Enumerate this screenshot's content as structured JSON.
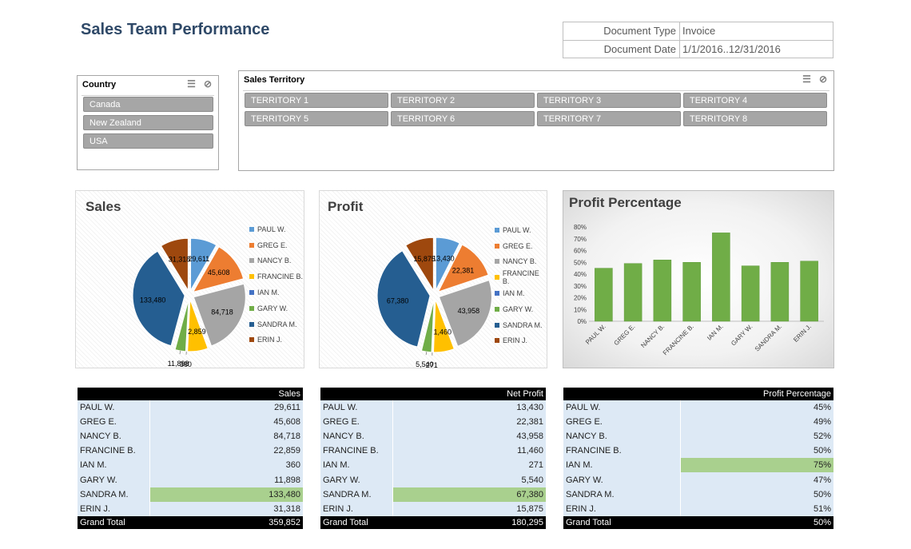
{
  "title": "Sales Team Performance",
  "doc_info": [
    {
      "label": "Document Type",
      "value": "Invoice"
    },
    {
      "label": "Document Date",
      "value": "1/1/2016..12/31/2016"
    }
  ],
  "country_slicer": {
    "title": "Country",
    "items": [
      "Canada",
      "New Zealand",
      "USA"
    ],
    "icons": [
      "multi-select-icon",
      "clear-filter-icon"
    ]
  },
  "territory_slicer": {
    "title": "Sales Territory",
    "items": [
      "TERRITORY 1",
      "TERRITORY 2",
      "TERRITORY 3",
      "TERRITORY 4",
      "TERRITORY 5",
      "TERRITORY 6",
      "TERRITORY 7",
      "TERRITORY 8"
    ],
    "icons": [
      "multi-select-icon",
      "clear-filter-icon"
    ]
  },
  "colors": {
    "title": "#2f4968",
    "slicer_button": "#a6a6a6",
    "bar": "#70ad47",
    "highlight": "#a9d08e",
    "table_row": "#dde9f5"
  },
  "chart_data": [
    {
      "type": "pie",
      "title": "Sales",
      "categories": [
        "PAUL W.",
        "GREG E.",
        "NANCY B.",
        "FRANCINE B.",
        "IAN M.",
        "GARY W.",
        "SANDRA M.",
        "ERIN J."
      ],
      "values": [
        29611,
        45608,
        84718,
        22859,
        360,
        11898,
        133480,
        31318
      ],
      "labels": [
        "29,611",
        "45,608",
        "84,718",
        "22,859",
        "360",
        "11,898",
        "133,480",
        "31,318"
      ],
      "colors": [
        "#5b9bd5",
        "#ed7d31",
        "#a5a5a5",
        "#ffc000",
        "#4472c4",
        "#70ad47",
        "#255e91",
        "#9e480e"
      ],
      "legend": "right"
    },
    {
      "type": "pie",
      "title": "Profit",
      "categories": [
        "PAUL W.",
        "GREG E.",
        "NANCY B.",
        "FRANCINE B.",
        "IAN M.",
        "GARY W.",
        "SANDRA M.",
        "ERIN J."
      ],
      "values": [
        13430,
        22381,
        43958,
        11460,
        271,
        5540,
        67380,
        15875
      ],
      "labels": [
        "13,430",
        "22,381",
        "43,958",
        "11,460",
        "271",
        "5,540",
        "67,380",
        "15,875"
      ],
      "colors": [
        "#5b9bd5",
        "#ed7d31",
        "#a5a5a5",
        "#ffc000",
        "#4472c4",
        "#70ad47",
        "#255e91",
        "#9e480e"
      ],
      "legend": "right"
    },
    {
      "type": "bar",
      "title": "Profit Percentage",
      "categories": [
        "PAUL W.",
        "GREG E.",
        "NANCY B.",
        "FRANCINE B.",
        "IAN M.",
        "GARY W.",
        "SANDRA M.",
        "ERIN J."
      ],
      "values": [
        45,
        49,
        52,
        50,
        75,
        47,
        50,
        51
      ],
      "ylim": [
        0,
        80
      ],
      "yticks": [
        "0%",
        "10%",
        "20%",
        "30%",
        "40%",
        "50%",
        "60%",
        "70%",
        "80%"
      ],
      "grid": false,
      "color": "#70ad47"
    }
  ],
  "tables": [
    {
      "header": "Sales",
      "rows": [
        {
          "name": "PAUL W.",
          "value": "29,611"
        },
        {
          "name": "GREG E.",
          "value": "45,608"
        },
        {
          "name": "NANCY B.",
          "value": "84,718"
        },
        {
          "name": "FRANCINE B.",
          "value": "22,859"
        },
        {
          "name": "IAN M.",
          "value": "360"
        },
        {
          "name": "GARY W.",
          "value": "11,898"
        },
        {
          "name": "SANDRA M.",
          "value": "133,480",
          "highlight": true
        },
        {
          "name": "ERIN J.",
          "value": "31,318"
        }
      ],
      "total_label": "Grand Total",
      "total": "359,852"
    },
    {
      "header": "Net Profit",
      "rows": [
        {
          "name": "PAUL W.",
          "value": "13,430"
        },
        {
          "name": "GREG E.",
          "value": "22,381"
        },
        {
          "name": "NANCY B.",
          "value": "43,958"
        },
        {
          "name": "FRANCINE B.",
          "value": "11,460"
        },
        {
          "name": "IAN M.",
          "value": "271"
        },
        {
          "name": "GARY W.",
          "value": "5,540"
        },
        {
          "name": "SANDRA M.",
          "value": "67,380",
          "highlight": true
        },
        {
          "name": "ERIN J.",
          "value": "15,875"
        }
      ],
      "total_label": "Grand Total",
      "total": "180,295"
    },
    {
      "header": "Profit Percentage",
      "rows": [
        {
          "name": "PAUL W.",
          "value": "45%"
        },
        {
          "name": "GREG E.",
          "value": "49%"
        },
        {
          "name": "NANCY B.",
          "value": "52%"
        },
        {
          "name": "FRANCINE B.",
          "value": "50%"
        },
        {
          "name": "IAN M.",
          "value": "75%",
          "highlight": true
        },
        {
          "name": "GARY W.",
          "value": "47%"
        },
        {
          "name": "SANDRA M.",
          "value": "50%"
        },
        {
          "name": "ERIN J.",
          "value": "51%"
        }
      ],
      "total_label": "Grand Total",
      "total": "50%"
    }
  ]
}
